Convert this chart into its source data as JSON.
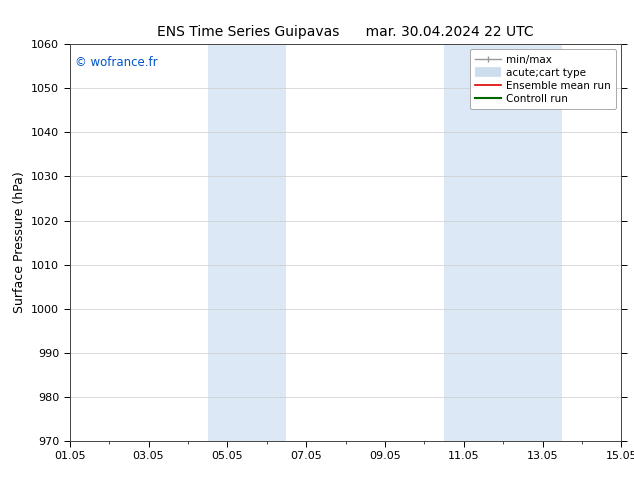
{
  "title_left": "ENS Time Series Guipavas",
  "title_right": "mar. 30.04.2024 22 UTC",
  "ylabel": "Surface Pressure (hPa)",
  "ylim": [
    970,
    1060
  ],
  "yticks": [
    970,
    980,
    990,
    1000,
    1010,
    1020,
    1030,
    1040,
    1050,
    1060
  ],
  "xlim": [
    0,
    14
  ],
  "xtick_labels": [
    "01.05",
    "03.05",
    "05.05",
    "07.05",
    "09.05",
    "11.05",
    "13.05",
    "15.05"
  ],
  "xtick_positions": [
    0,
    2,
    4,
    6,
    8,
    10,
    12,
    14
  ],
  "background_color": "#ffffff",
  "plot_bg_color": "#ffffff",
  "shaded_regions": [
    {
      "xstart": 3.5,
      "xend": 5.5,
      "color": "#dce8f5"
    },
    {
      "xstart": 9.5,
      "xend": 12.5,
      "color": "#dce8f5"
    }
  ],
  "watermark_text": "© wofrance.fr",
  "watermark_color": "#0055cc",
  "legend_entries": [
    {
      "label": "min/max",
      "color": "#999999",
      "lw": 1.0,
      "type": "errbar"
    },
    {
      "label": "acute;cart type",
      "color": "#ccddee",
      "lw": 7,
      "type": "thick"
    },
    {
      "label": "Ensemble mean run",
      "color": "#dd0000",
      "lw": 1.2,
      "type": "line"
    },
    {
      "label": "Controll run",
      "color": "#006600",
      "lw": 1.5,
      "type": "line"
    }
  ],
  "grid_color": "#cccccc",
  "title_fontsize": 10,
  "axis_label_fontsize": 9,
  "tick_fontsize": 8,
  "legend_fontsize": 7.5
}
